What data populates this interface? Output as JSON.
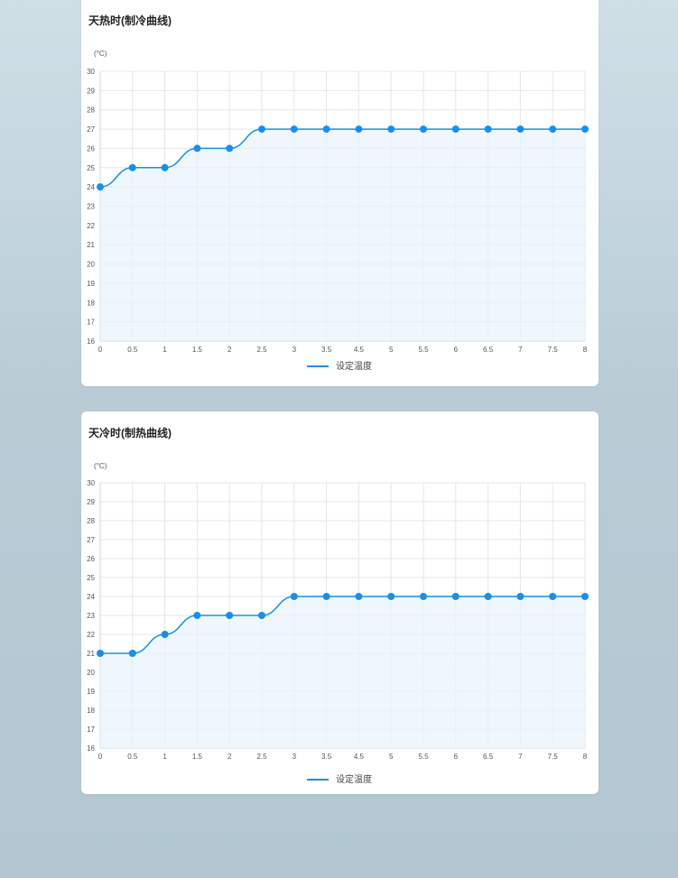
{
  "accent_color": "#1a8fe6",
  "fill_color": "#e8f3fb",
  "chart_data": [
    {
      "type": "line",
      "title": "天热时(制冷曲线)",
      "ylabel": "(°C)",
      "xlabel": "",
      "x": [
        0,
        0.5,
        1,
        1.5,
        2,
        2.5,
        3,
        3.5,
        4.5,
        5,
        5.5,
        6,
        6.5,
        7,
        7.5,
        8
      ],
      "xticks": [
        "0",
        "0.5",
        "1",
        "1.5",
        "2",
        "2.5",
        "3",
        "3.5",
        "4.5",
        "5",
        "5.5",
        "6",
        "6.5",
        "7",
        "7.5",
        "8"
      ],
      "ylim": [
        16,
        30
      ],
      "yticks": [
        "16",
        "17",
        "18",
        "19",
        "20",
        "21",
        "22",
        "23",
        "24",
        "25",
        "26",
        "27",
        "28",
        "29",
        "30"
      ],
      "series": [
        {
          "name": "设定温度",
          "values": [
            24,
            25,
            25,
            26,
            26,
            27,
            27,
            27,
            27,
            27,
            27,
            27,
            27,
            27,
            27,
            27
          ]
        }
      ],
      "legend": "bottom-center",
      "grid": true,
      "area_fill": true
    },
    {
      "type": "line",
      "title": "天冷时(制热曲线)",
      "ylabel": "(°C)",
      "xlabel": "",
      "x": [
        0,
        0.5,
        1,
        1.5,
        2,
        2.5,
        3,
        3.5,
        4.5,
        5,
        5.5,
        6,
        6.5,
        7,
        7.5,
        8
      ],
      "xticks": [
        "0",
        "0.5",
        "1",
        "1.5",
        "2",
        "2.5",
        "3",
        "3.5",
        "4.5",
        "5",
        "5.5",
        "6",
        "6.5",
        "7",
        "7.5",
        "8"
      ],
      "ylim": [
        16,
        30
      ],
      "yticks": [
        "16",
        "17",
        "18",
        "19",
        "20",
        "21",
        "22",
        "23",
        "24",
        "25",
        "26",
        "27",
        "28",
        "29",
        "30"
      ],
      "series": [
        {
          "name": "设定温度",
          "values": [
            21,
            21,
            22,
            23,
            23,
            23,
            24,
            24,
            24,
            24,
            24,
            24,
            24,
            24,
            24,
            24
          ]
        }
      ],
      "legend": "bottom-center",
      "grid": true,
      "area_fill": true
    }
  ]
}
